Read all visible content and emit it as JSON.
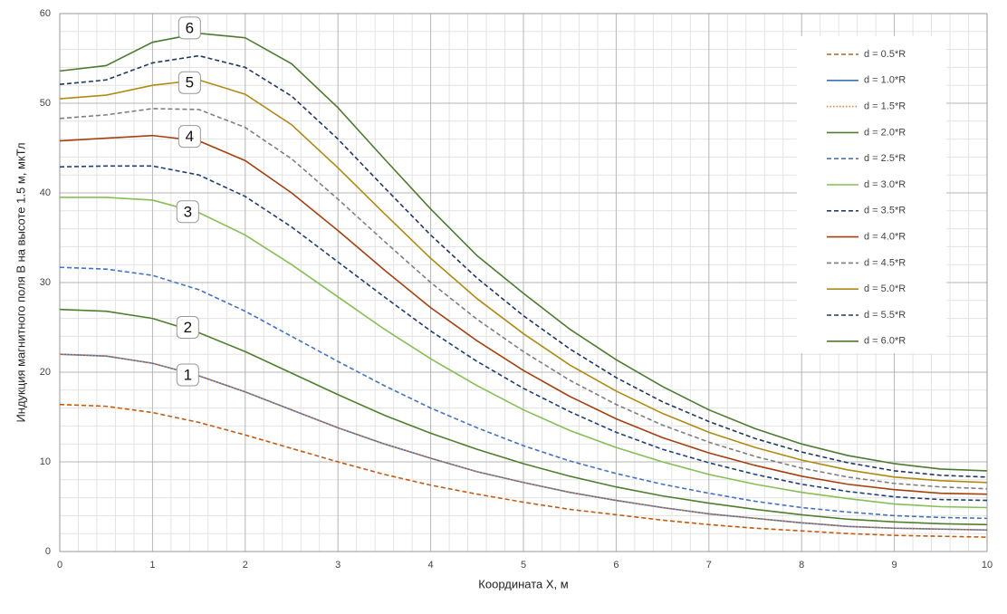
{
  "chart_data": {
    "type": "line",
    "x_label": "Координата Х, м",
    "y_label": "Индукция магнитного поля В на высоте 1.5 м, мкТл",
    "x": [
      0,
      0.5,
      1,
      1.5,
      2,
      2.5,
      3,
      3.5,
      4,
      4.5,
      5,
      5.5,
      6,
      6.5,
      7,
      7.5,
      8,
      8.5,
      9,
      9.5,
      10
    ],
    "xlim": [
      0,
      10
    ],
    "xticks": [
      0,
      1,
      2,
      3,
      4,
      5,
      6,
      7,
      8,
      9,
      10
    ],
    "ylim": [
      0,
      60
    ],
    "yticks": [
      0,
      10,
      20,
      30,
      40,
      50,
      60
    ],
    "grid": true,
    "legend": "upper right",
    "annotations": [
      "6",
      "5",
      "4",
      "3",
      "2",
      "1"
    ],
    "series": [
      {
        "name": "d = 0.5*R",
        "color": "#c55a11",
        "style": "dashed",
        "values": [
          16.4,
          16.2,
          15.5,
          14.4,
          13.0,
          11.5,
          10.0,
          8.6,
          7.4,
          6.4,
          5.5,
          4.7,
          4.1,
          3.5,
          3.0,
          2.6,
          2.3,
          2.0,
          1.8,
          1.7,
          1.6
        ]
      },
      {
        "name": "d = 1.0*R",
        "color": "#3a70b8",
        "style": "solid",
        "values": [
          22.0,
          21.8,
          21.0,
          19.6,
          17.8,
          15.8,
          13.8,
          12.0,
          10.4,
          8.9,
          7.7,
          6.6,
          5.7,
          4.9,
          4.2,
          3.7,
          3.2,
          2.8,
          2.6,
          2.5,
          2.4
        ]
      },
      {
        "name": "d = 1.5*R",
        "color": "#ed7d31",
        "style": "dotted",
        "values": [
          22.0,
          21.8,
          21.0,
          19.6,
          17.8,
          15.8,
          13.8,
          12.0,
          10.4,
          8.9,
          7.7,
          6.6,
          5.7,
          4.9,
          4.2,
          3.7,
          3.2,
          2.8,
          2.6,
          2.5,
          2.4
        ]
      },
      {
        "name": "d = 2.0*R",
        "color": "#4f7f2c",
        "style": "solid",
        "values": [
          27.0,
          26.8,
          26.0,
          24.4,
          22.3,
          19.9,
          17.5,
          15.2,
          13.2,
          11.4,
          9.8,
          8.4,
          7.2,
          6.2,
          5.4,
          4.7,
          4.1,
          3.6,
          3.3,
          3.1,
          3.0
        ]
      },
      {
        "name": "d = 2.5*R",
        "color": "#4472c4",
        "style": "dashed",
        "values": [
          31.7,
          31.5,
          30.8,
          29.2,
          26.8,
          24.0,
          21.2,
          18.5,
          16.0,
          13.8,
          11.8,
          10.1,
          8.7,
          7.5,
          6.5,
          5.6,
          4.9,
          4.4,
          4.0,
          3.8,
          3.7
        ]
      },
      {
        "name": "d = 3.0*R",
        "color": "#86bf55",
        "style": "solid",
        "values": [
          39.5,
          39.5,
          39.2,
          37.8,
          35.3,
          32.0,
          28.4,
          24.8,
          21.5,
          18.5,
          15.8,
          13.5,
          11.6,
          10.0,
          8.6,
          7.5,
          6.6,
          5.9,
          5.3,
          5.0,
          4.9
        ]
      },
      {
        "name": "d = 3.5*R",
        "color": "#1f3f78",
        "style": "dashed",
        "values": [
          42.9,
          43.0,
          43.0,
          42.0,
          39.6,
          36.2,
          32.3,
          28.4,
          24.6,
          21.2,
          18.2,
          15.6,
          13.3,
          11.4,
          9.9,
          8.6,
          7.5,
          6.7,
          6.1,
          5.8,
          5.7
        ]
      },
      {
        "name": "d = 4.0*R",
        "color": "#a5400f",
        "style": "solid",
        "values": [
          45.8,
          46.1,
          46.4,
          45.8,
          43.6,
          40.0,
          35.8,
          31.4,
          27.2,
          23.5,
          20.2,
          17.3,
          14.8,
          12.7,
          11.0,
          9.6,
          8.4,
          7.5,
          6.9,
          6.5,
          6.4
        ]
      },
      {
        "name": "d = 4.5*R",
        "color": "#7f7f7f",
        "style": "dashed",
        "values": [
          48.3,
          48.7,
          49.4,
          49.3,
          47.3,
          43.8,
          39.3,
          34.6,
          30.0,
          25.9,
          22.3,
          19.1,
          16.4,
          14.1,
          12.2,
          10.6,
          9.3,
          8.3,
          7.6,
          7.2,
          7.0
        ]
      },
      {
        "name": "d = 5.0*R",
        "color": "#b08a12",
        "style": "solid",
        "values": [
          50.5,
          50.9,
          52.0,
          52.6,
          51.0,
          47.6,
          42.8,
          37.7,
          32.7,
          28.2,
          24.3,
          20.8,
          17.9,
          15.4,
          13.3,
          11.6,
          10.2,
          9.1,
          8.3,
          7.9,
          7.7
        ]
      },
      {
        "name": "d = 5.5*R",
        "color": "#203864",
        "style": "dashed",
        "values": [
          52.1,
          52.6,
          54.5,
          55.3,
          54.0,
          50.8,
          46.0,
          40.6,
          35.3,
          30.5,
          26.3,
          22.6,
          19.4,
          16.7,
          14.5,
          12.6,
          11.1,
          9.9,
          9.0,
          8.5,
          8.3
        ]
      },
      {
        "name": "d = 6.0*R",
        "color": "#4e7a2e",
        "style": "solid",
        "values": [
          53.6,
          54.2,
          56.8,
          57.8,
          57.3,
          54.4,
          49.5,
          43.8,
          38.2,
          33.0,
          28.8,
          24.8,
          21.4,
          18.4,
          15.8,
          13.7,
          12.0,
          10.7,
          9.8,
          9.2,
          9.0
        ]
      }
    ]
  }
}
